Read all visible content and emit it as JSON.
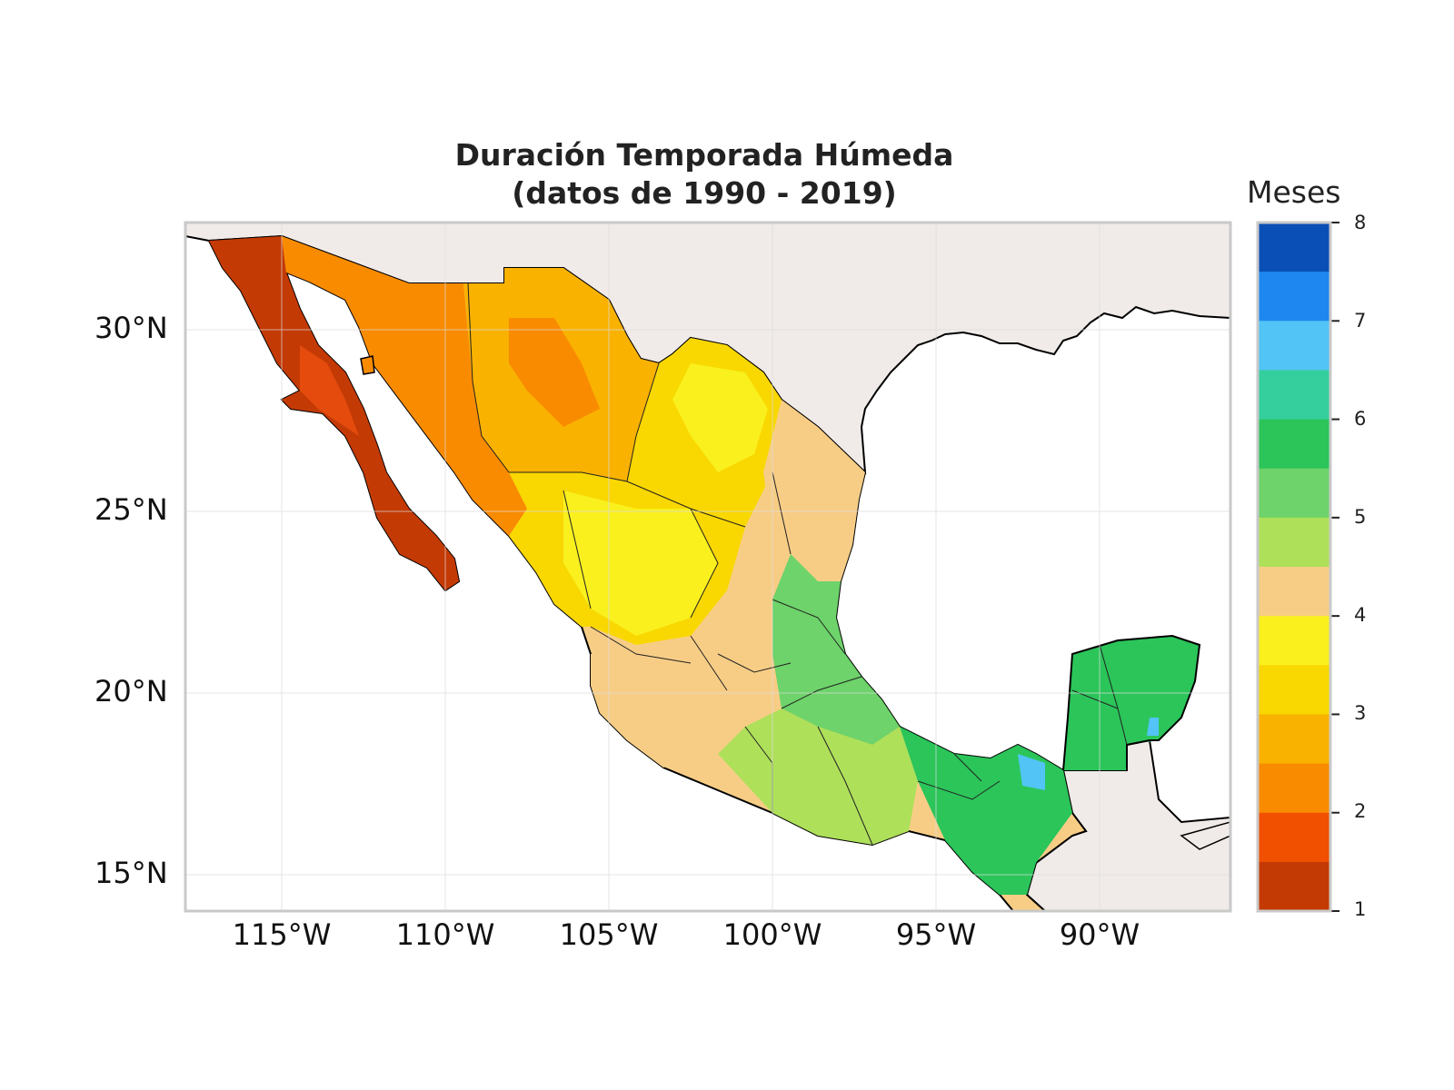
{
  "title": {
    "line1": "Duración Temporada Húmeda",
    "line2": "(datos de 1990 - 2019)"
  },
  "axes": {
    "x_ticks": [
      "115°W",
      "110°W",
      "105°W",
      "100°W",
      "95°W",
      "90°W"
    ],
    "y_ticks": [
      "30°N",
      "25°N",
      "20°N",
      "15°N"
    ]
  },
  "colorbar": {
    "title": "Meses",
    "ticks": [
      "8",
      "7",
      "6",
      "5",
      "4",
      "3",
      "2",
      "1"
    ],
    "colors": [
      "#0a4fb5",
      "#1e88f0",
      "#52c4f5",
      "#35cf9e",
      "#2bc55a",
      "#6dd36a",
      "#aee05a",
      "#f7cd86",
      "#f9f01e",
      "#f9d700",
      "#f9b200",
      "#f98b00",
      "#f05000",
      "#c43a05"
    ]
  },
  "colors": {
    "land_outside": "#f0ebe8",
    "ocean": "#ffffff",
    "grid": "#dcdcdc",
    "frame": "#c9c9c9"
  }
}
